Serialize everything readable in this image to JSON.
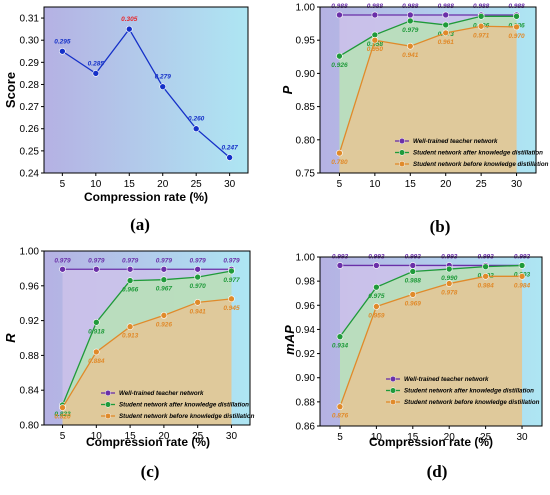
{
  "figure": {
    "panel_labels": [
      "(a)",
      "(b)",
      "(c)",
      "(d)"
    ]
  },
  "colors": {
    "teacher": "#6a2fa8",
    "after": "#1f9a3a",
    "before": "#e08a2a",
    "score_line": "#1530c8",
    "score_peak": "#e8262a",
    "bg_left": "#b5b1e3",
    "bg_right": "#aee6f3",
    "fill_after": "#b8e0b9",
    "fill_before": "#e3c697"
  },
  "chart_data": [
    {
      "id": "a",
      "type": "line",
      "panel_label": "(a)",
      "xlabel": "Compression rate (%)",
      "ylabel": "Score",
      "x": [
        5,
        10,
        15,
        20,
        25,
        30
      ],
      "xticks": [
        "5",
        "10",
        "15",
        "20",
        "25",
        "30"
      ],
      "ylim": [
        0.24,
        0.315
      ],
      "yticks": [
        "0.24",
        "0.25",
        "0.26",
        "0.27",
        "0.28",
        "0.29",
        "0.30",
        "0.31"
      ],
      "series": [
        {
          "key": "score",
          "values": [
            0.295,
            0.285,
            0.305,
            0.279,
            0.26,
            0.247
          ],
          "labels": [
            "0.295",
            "0.285",
            "0.305",
            "0.279",
            "0.260",
            "0.247"
          ]
        }
      ],
      "highlight_index": 2,
      "grid": false
    },
    {
      "id": "b",
      "type": "area",
      "panel_label": "(b)",
      "xlabel": "",
      "ylabel": "P",
      "x": [
        5,
        10,
        15,
        20,
        25,
        30
      ],
      "xticks": [
        "5",
        "10",
        "15",
        "20",
        "25",
        "30"
      ],
      "ylim": [
        0.75,
        1.0
      ],
      "yticks": [
        "0.75",
        "0.80",
        "0.85",
        "0.90",
        "0.95",
        "1.00"
      ],
      "legend_position": "bottom-right",
      "series": [
        {
          "key": "teacher",
          "name": "Well-trained teacher network",
          "values": [
            0.988,
            0.988,
            0.988,
            0.988,
            0.988,
            0.988
          ],
          "labels": [
            "0.988",
            "0.988",
            "0.988",
            "0.988",
            "0.988",
            "0.988"
          ]
        },
        {
          "key": "after",
          "name": "Student network after knowledge distillation",
          "values": [
            0.926,
            0.958,
            0.979,
            0.973,
            0.986,
            0.986
          ],
          "labels": [
            "0.926",
            "0.958",
            "0.979",
            "0.973",
            "0.986",
            "0.986"
          ]
        },
        {
          "key": "before",
          "name": "Student network before knowledge distillation",
          "values": [
            0.78,
            0.95,
            0.941,
            0.961,
            0.971,
            0.97
          ],
          "labels": [
            "0.780",
            "0.950",
            "0.941",
            "0.961",
            "0.971",
            "0.970"
          ]
        }
      ]
    },
    {
      "id": "c",
      "type": "area",
      "panel_label": "(c)",
      "xlabel": "Compression rate (%)",
      "ylabel": "R",
      "x": [
        5,
        10,
        15,
        20,
        25,
        30
      ],
      "xticks": [
        "5",
        "10",
        "15",
        "20",
        "25",
        "30"
      ],
      "ylim": [
        0.8,
        1.0
      ],
      "yticks": [
        "0.80",
        "0.84",
        "0.88",
        "0.92",
        "0.96",
        "1.00"
      ],
      "legend_position": "bottom-right",
      "series": [
        {
          "key": "teacher",
          "name": "Well-trained teacher network",
          "values": [
            0.979,
            0.979,
            0.979,
            0.979,
            0.979,
            0.979
          ],
          "labels": [
            "0.979",
            "0.979",
            "0.979",
            "0.979",
            "0.979",
            "0.979"
          ]
        },
        {
          "key": "after",
          "name": "Student network after knowledge distillation",
          "values": [
            0.823,
            0.918,
            0.966,
            0.967,
            0.97,
            0.977
          ],
          "labels": [
            "0.823",
            "0.918",
            "0.966",
            "0.967",
            "0.970",
            "0.977"
          ]
        },
        {
          "key": "before",
          "name": "Student network before knowledge distillation",
          "values": [
            0.82,
            0.884,
            0.913,
            0.926,
            0.941,
            0.945
          ],
          "labels": [
            "0.820",
            "0.884",
            "0.913",
            "0.926",
            "0.941",
            "0.945"
          ]
        }
      ]
    },
    {
      "id": "d",
      "type": "area",
      "panel_label": "(d)",
      "xlabel": "Compression rate (%)",
      "ylabel": "mAP",
      "x": [
        5,
        10,
        15,
        20,
        25,
        30
      ],
      "xticks": [
        "5",
        "10",
        "15",
        "20",
        "25",
        "30"
      ],
      "ylim": [
        0.86,
        1.0
      ],
      "yticks": [
        "0.86",
        "0.88",
        "0.90",
        "0.92",
        "0.94",
        "0.96",
        "0.98",
        "1.00"
      ],
      "legend_position": "bottom-right",
      "series": [
        {
          "key": "teacher",
          "name": "Well-trained teacher network",
          "values": [
            0.993,
            0.993,
            0.993,
            0.993,
            0.993,
            0.993
          ],
          "labels": [
            "0.993",
            "0.993",
            "0.993",
            "0.993",
            "0.993",
            "0.993"
          ]
        },
        {
          "key": "after",
          "name": "Student network after knowledge distillation",
          "values": [
            0.934,
            0.975,
            0.988,
            0.99,
            0.992,
            0.993
          ],
          "labels": [
            "0.934",
            "0.975",
            "0.988",
            "0.990",
            "0.992",
            "0.993"
          ]
        },
        {
          "key": "before",
          "name": "Student network before knowledge distillation",
          "values": [
            0.876,
            0.959,
            0.969,
            0.978,
            0.984,
            0.984
          ],
          "labels": [
            "0.876",
            "0.959",
            "0.969",
            "0.978",
            "0.984",
            "0.984"
          ]
        }
      ]
    }
  ]
}
